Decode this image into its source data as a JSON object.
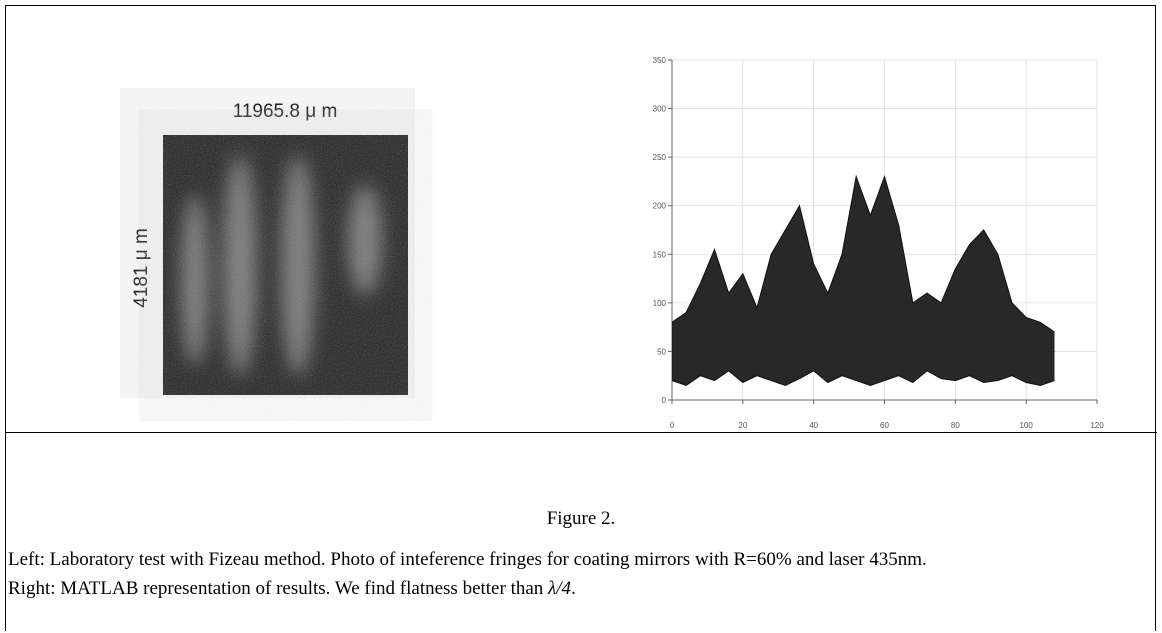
{
  "photo": {
    "x_label": "11965.8 μ m",
    "y_label": "4181 μ m"
  },
  "chart_data": {
    "type": "area",
    "x": [
      0,
      4,
      8,
      12,
      16,
      20,
      24,
      28,
      32,
      36,
      40,
      44,
      48,
      52,
      56,
      60,
      64,
      68,
      72,
      76,
      80,
      84,
      88,
      92,
      96,
      100,
      104,
      108
    ],
    "series": [
      {
        "color": "#111111",
        "values": [
          80,
          90,
          120,
          155,
          110,
          130,
          95,
          150,
          175,
          200,
          140,
          110,
          150,
          230,
          190,
          230,
          180,
          100,
          110,
          100,
          135,
          160,
          175,
          150,
          100,
          85,
          80,
          70
        ]
      },
      {
        "color": "#111111",
        "values": [
          20,
          15,
          25,
          20,
          30,
          18,
          25,
          20,
          15,
          22,
          30,
          18,
          25,
          20,
          15,
          20,
          25,
          18,
          30,
          22,
          20,
          25,
          18,
          20,
          25,
          18,
          15,
          20
        ]
      }
    ],
    "xlim": [
      0,
      120
    ],
    "xticks": [
      0,
      20,
      40,
      60,
      80,
      100,
      120
    ],
    "ylim": [
      0,
      350
    ],
    "yticks": [
      0,
      50,
      100,
      150,
      200,
      250,
      300,
      350
    ],
    "grid": true
  },
  "caption": {
    "title": "Figure 2.",
    "left": "Left: Laboratory test with Fizeau  method. Photo of inteference fringes for coating mirrors with R=60% and laser 435nm.",
    "right": [
      "Right: MATLAB representation of results. We find flatness better than ",
      "λ/4",
      "."
    ]
  }
}
